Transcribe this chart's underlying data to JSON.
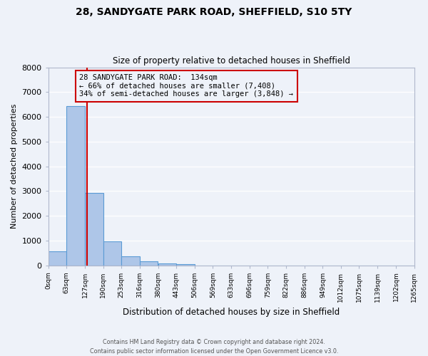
{
  "title_line1": "28, SANDYGATE PARK ROAD, SHEFFIELD, S10 5TY",
  "title_line2": "Size of property relative to detached houses in Sheffield",
  "xlabel": "Distribution of detached houses by size in Sheffield",
  "ylabel": "Number of detached properties",
  "bar_values": [
    560,
    6430,
    2920,
    960,
    370,
    160,
    70,
    50,
    0,
    0,
    0,
    0,
    0,
    0,
    0,
    0,
    0,
    0,
    0,
    0
  ],
  "bin_edges": [
    0,
    63,
    127,
    190,
    253,
    316,
    380,
    443,
    506,
    569,
    633,
    696,
    759,
    822,
    886,
    949,
    1012,
    1075,
    1139,
    1202,
    1265
  ],
  "tick_labels": [
    "0sqm",
    "63sqm",
    "127sqm",
    "190sqm",
    "253sqm",
    "316sqm",
    "380sqm",
    "443sqm",
    "506sqm",
    "569sqm",
    "633sqm",
    "696sqm",
    "759sqm",
    "822sqm",
    "886sqm",
    "949sqm",
    "1012sqm",
    "1075sqm",
    "1139sqm",
    "1202sqm",
    "1265sqm"
  ],
  "bar_color": "#aec6e8",
  "bar_edge_color": "#5b9bd5",
  "bar_edge_width": 0.8,
  "ylim": [
    0,
    8000
  ],
  "yticks": [
    0,
    1000,
    2000,
    3000,
    4000,
    5000,
    6000,
    7000,
    8000
  ],
  "vline_x": 134,
  "vline_color": "#cc0000",
  "annotation_line1": "28 SANDYGATE PARK ROAD:  134sqm",
  "annotation_line2": "← 66% of detached houses are smaller (7,408)",
  "annotation_line3": "34% of semi-detached houses are larger (3,848) →",
  "background_color": "#eef2f9",
  "grid_color": "#ffffff",
  "footer_line1": "Contains HM Land Registry data © Crown copyright and database right 2024.",
  "footer_line2": "Contains public sector information licensed under the Open Government Licence v3.0."
}
